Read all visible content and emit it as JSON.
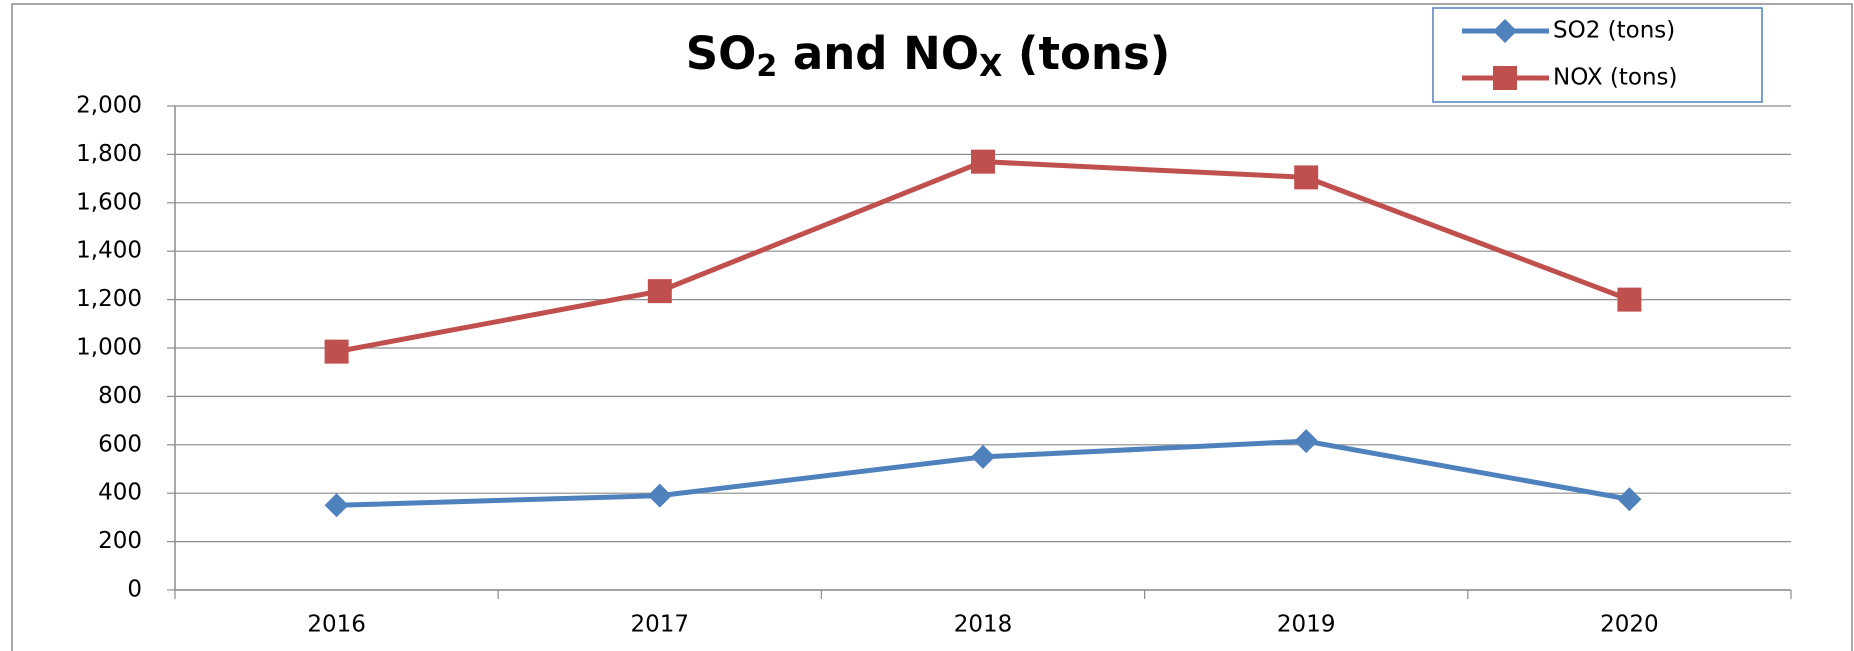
{
  "chart_data": {
    "type": "line",
    "title": [
      "SO",
      "2",
      " and NO",
      "X",
      " (tons)"
    ],
    "categories": [
      "2016",
      "2017",
      "2018",
      "2019",
      "2020"
    ],
    "series": [
      {
        "name": "SO2 (tons)",
        "color": "#4f81bd",
        "marker": "diamond",
        "values": [
          350,
          390,
          550,
          615,
          375
        ]
      },
      {
        "name": "NOX (tons)",
        "color": "#c0504d",
        "marker": "square",
        "values": [
          985,
          1235,
          1770,
          1705,
          1200
        ]
      }
    ],
    "ylim": [
      0,
      2000
    ],
    "yticks": [
      0,
      200,
      400,
      600,
      800,
      {
        "value": 1000,
        "label": "1,000"
      },
      {
        "value": 1200,
        "label": "1,200"
      },
      {
        "value": 1400,
        "label": "1,400"
      },
      {
        "value": 1600,
        "label": "1,600"
      },
      {
        "value": 1800,
        "label": "1,800"
      },
      {
        "value": 2000,
        "label": "2,000"
      }
    ],
    "grid": true,
    "legend": "top-right"
  }
}
